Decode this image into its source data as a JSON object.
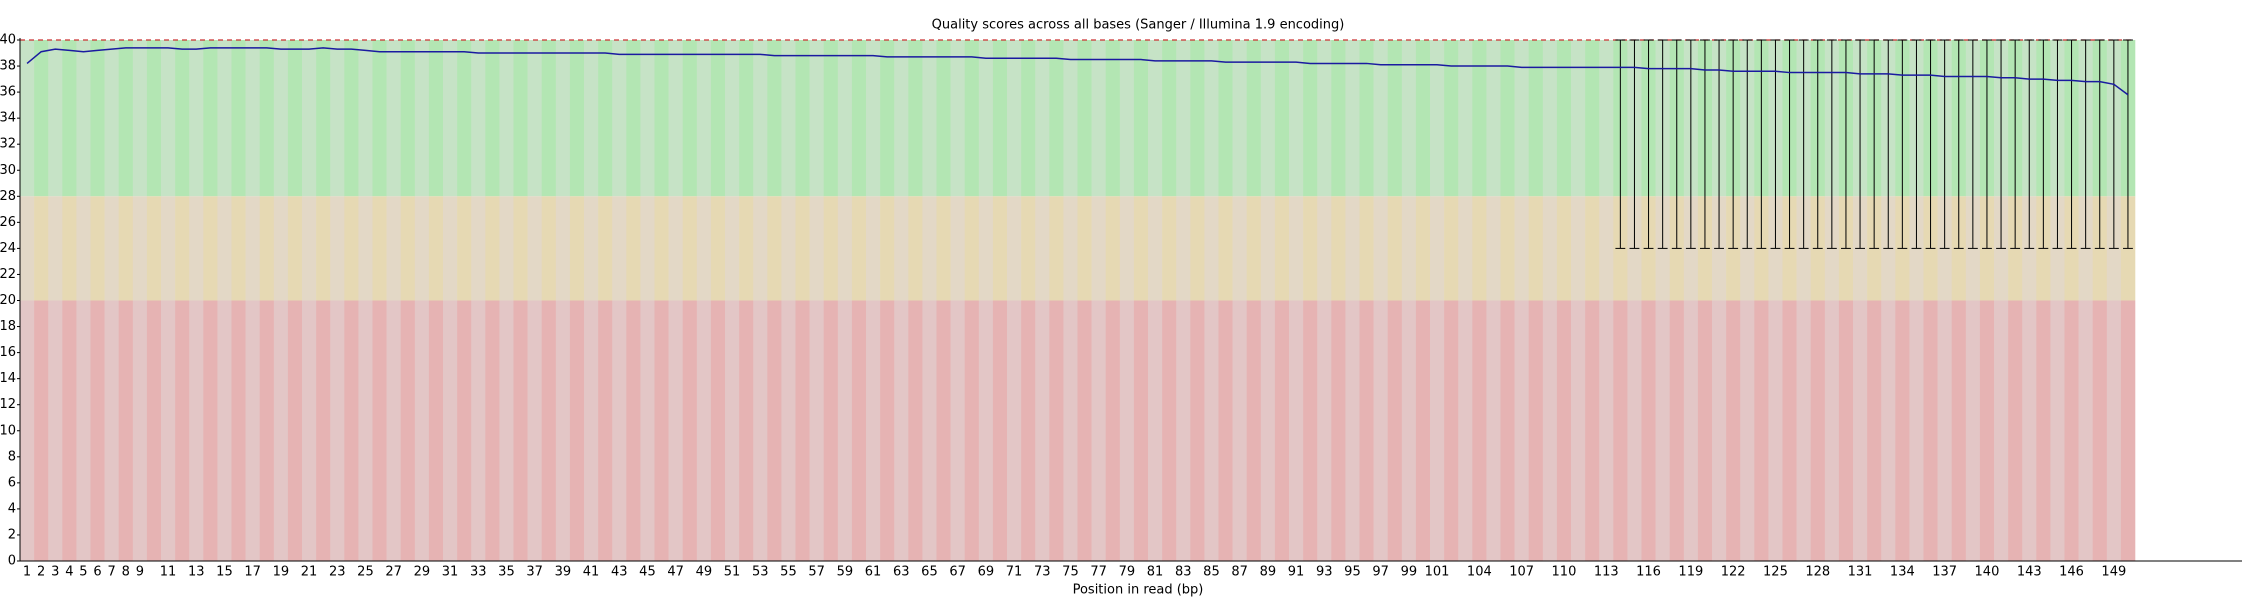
{
  "chart_data": {
    "type": "quality",
    "title": "Quality scores across all bases (Sanger / Illumina 1.9 encoding)",
    "x_label": "Position in read (bp)",
    "categories": [
      1,
      2,
      3,
      4,
      5,
      6,
      7,
      8,
      9,
      null,
      11,
      null,
      13,
      null,
      15,
      null,
      17,
      null,
      19,
      null,
      21,
      null,
      23,
      null,
      25,
      null,
      27,
      null,
      29,
      null,
      31,
      null,
      33,
      null,
      35,
      null,
      37,
      null,
      39,
      null,
      41,
      null,
      43,
      null,
      45,
      null,
      47,
      null,
      49,
      null,
      51,
      null,
      53,
      null,
      55,
      null,
      57,
      null,
      59,
      null,
      61,
      null,
      63,
      null,
      65,
      null,
      67,
      null,
      69,
      null,
      71,
      null,
      73,
      null,
      75,
      null,
      77,
      null,
      79,
      null,
      81,
      null,
      83,
      null,
      85,
      null,
      87,
      null,
      89,
      null,
      91,
      null,
      93,
      null,
      95,
      null,
      97,
      null,
      99,
      null,
      101,
      null,
      null,
      104,
      null,
      null,
      107,
      null,
      null,
      110,
      null,
      null,
      113,
      null,
      null,
      116,
      null,
      null,
      119,
      null,
      null,
      122,
      null,
      null,
      125,
      null,
      null,
      128,
      null,
      null,
      131,
      null,
      null,
      134,
      null,
      null,
      137,
      null,
      null,
      140,
      null,
      null,
      143,
      null,
      null,
      146,
      null,
      null,
      149,
      null
    ],
    "series": [
      {
        "name": "Mean",
        "color": "#1a1aa0",
        "values": [
          38.2,
          39.1,
          39.3,
          39.2,
          39.1,
          39.2,
          39.3,
          39.4,
          39.4,
          39.4,
          39.4,
          39.3,
          39.3,
          39.4,
          39.4,
          39.4,
          39.4,
          39.4,
          39.3,
          39.3,
          39.3,
          39.4,
          39.3,
          39.3,
          39.2,
          39.1,
          39.1,
          39.1,
          39.1,
          39.1,
          39.1,
          39.1,
          39.0,
          39.0,
          39.0,
          39.0,
          39.0,
          39.0,
          39.0,
          39.0,
          39.0,
          39.0,
          38.9,
          38.9,
          38.9,
          38.9,
          38.9,
          38.9,
          38.9,
          38.9,
          38.9,
          38.9,
          38.9,
          38.8,
          38.8,
          38.8,
          38.8,
          38.8,
          38.8,
          38.8,
          38.8,
          38.7,
          38.7,
          38.7,
          38.7,
          38.7,
          38.7,
          38.7,
          38.6,
          38.6,
          38.6,
          38.6,
          38.6,
          38.6,
          38.5,
          38.5,
          38.5,
          38.5,
          38.5,
          38.5,
          38.4,
          38.4,
          38.4,
          38.4,
          38.4,
          38.3,
          38.3,
          38.3,
          38.3,
          38.3,
          38.3,
          38.2,
          38.2,
          38.2,
          38.2,
          38.2,
          38.1,
          38.1,
          38.1,
          38.1,
          38.1,
          38.0,
          38.0,
          38.0,
          38.0,
          38.0,
          37.9,
          37.9,
          37.9,
          37.9,
          37.9,
          37.9,
          37.9,
          37.9,
          37.9,
          37.8,
          37.8,
          37.8,
          37.8,
          37.7,
          37.7,
          37.6,
          37.6,
          37.6,
          37.6,
          37.5,
          37.5,
          37.5,
          37.5,
          37.5,
          37.4,
          37.4,
          37.4,
          37.3,
          37.3,
          37.3,
          37.2,
          37.2,
          37.2,
          37.2,
          37.1,
          37.1,
          37.0,
          37.0,
          36.9,
          36.9,
          36.8,
          36.8,
          36.6,
          35.8
        ]
      }
    ],
    "whisker_low": [
      null,
      null,
      null,
      null,
      null,
      null,
      null,
      null,
      null,
      null,
      null,
      null,
      null,
      null,
      null,
      null,
      null,
      null,
      null,
      null,
      null,
      null,
      null,
      null,
      null,
      null,
      null,
      null,
      null,
      null,
      null,
      null,
      null,
      null,
      null,
      null,
      null,
      null,
      null,
      null,
      null,
      null,
      null,
      null,
      null,
      null,
      null,
      null,
      null,
      null,
      null,
      null,
      null,
      null,
      null,
      null,
      null,
      null,
      null,
      null,
      null,
      null,
      null,
      null,
      null,
      null,
      null,
      null,
      null,
      null,
      null,
      null,
      null,
      null,
      null,
      null,
      null,
      null,
      null,
      null,
      null,
      null,
      null,
      null,
      null,
      null,
      null,
      null,
      null,
      null,
      null,
      null,
      null,
      null,
      null,
      null,
      null,
      null,
      null,
      null,
      null,
      null,
      null,
      null,
      null,
      null,
      null,
      null,
      null,
      null,
      null,
      null,
      null,
      24,
      24,
      24,
      24,
      24,
      24,
      24,
      24,
      24,
      24,
      24,
      24,
      24,
      24,
      24,
      24,
      24,
      24,
      24,
      24,
      24,
      24,
      24,
      24,
      24,
      24,
      24,
      24,
      24,
      24,
      24,
      24,
      24,
      24,
      24,
      24,
      24
    ],
    "whisker_high": [
      null,
      null,
      null,
      null,
      null,
      null,
      null,
      null,
      null,
      null,
      null,
      null,
      null,
      null,
      null,
      null,
      null,
      null,
      null,
      null,
      null,
      null,
      null,
      null,
      null,
      null,
      null,
      null,
      null,
      null,
      null,
      null,
      null,
      null,
      null,
      null,
      null,
      null,
      null,
      null,
      null,
      null,
      null,
      null,
      null,
      null,
      null,
      null,
      null,
      null,
      null,
      null,
      null,
      null,
      null,
      null,
      null,
      null,
      null,
      null,
      null,
      null,
      null,
      null,
      null,
      null,
      null,
      null,
      null,
      null,
      null,
      null,
      null,
      null,
      null,
      null,
      null,
      null,
      null,
      null,
      null,
      null,
      null,
      null,
      null,
      null,
      null,
      null,
      null,
      null,
      null,
      null,
      null,
      null,
      null,
      null,
      null,
      null,
      null,
      null,
      null,
      null,
      null,
      null,
      null,
      null,
      null,
      null,
      null,
      null,
      null,
      null,
      null,
      40,
      40,
      40,
      40,
      40,
      40,
      40,
      40,
      40,
      40,
      40,
      40,
      40,
      40,
      40,
      40,
      40,
      40,
      40,
      40,
      40,
      40,
      40,
      40,
      40,
      40,
      40,
      40,
      40,
      40,
      40,
      40,
      40,
      40,
      40,
      40,
      40
    ],
    "whisker_color": "#000000",
    "zones": [
      {
        "from": 28,
        "to": 40,
        "color": "#b3e6b3",
        "alt_color": "#c6e3c6"
      },
      {
        "from": 20,
        "to": 28,
        "color": "#e6d9b3",
        "alt_color": "#e3d8c6"
      },
      {
        "from": 0,
        "to": 20,
        "color": "#e6b3b3",
        "alt_color": "#e3c6c6"
      }
    ],
    "ylim": [
      0,
      40
    ],
    "yticks": [
      0,
      2,
      4,
      6,
      8,
      10,
      12,
      14,
      16,
      18,
      20,
      22,
      24,
      26,
      28,
      30,
      32,
      34,
      36,
      38,
      40
    ],
    "top_line_color": "#cc3333"
  }
}
